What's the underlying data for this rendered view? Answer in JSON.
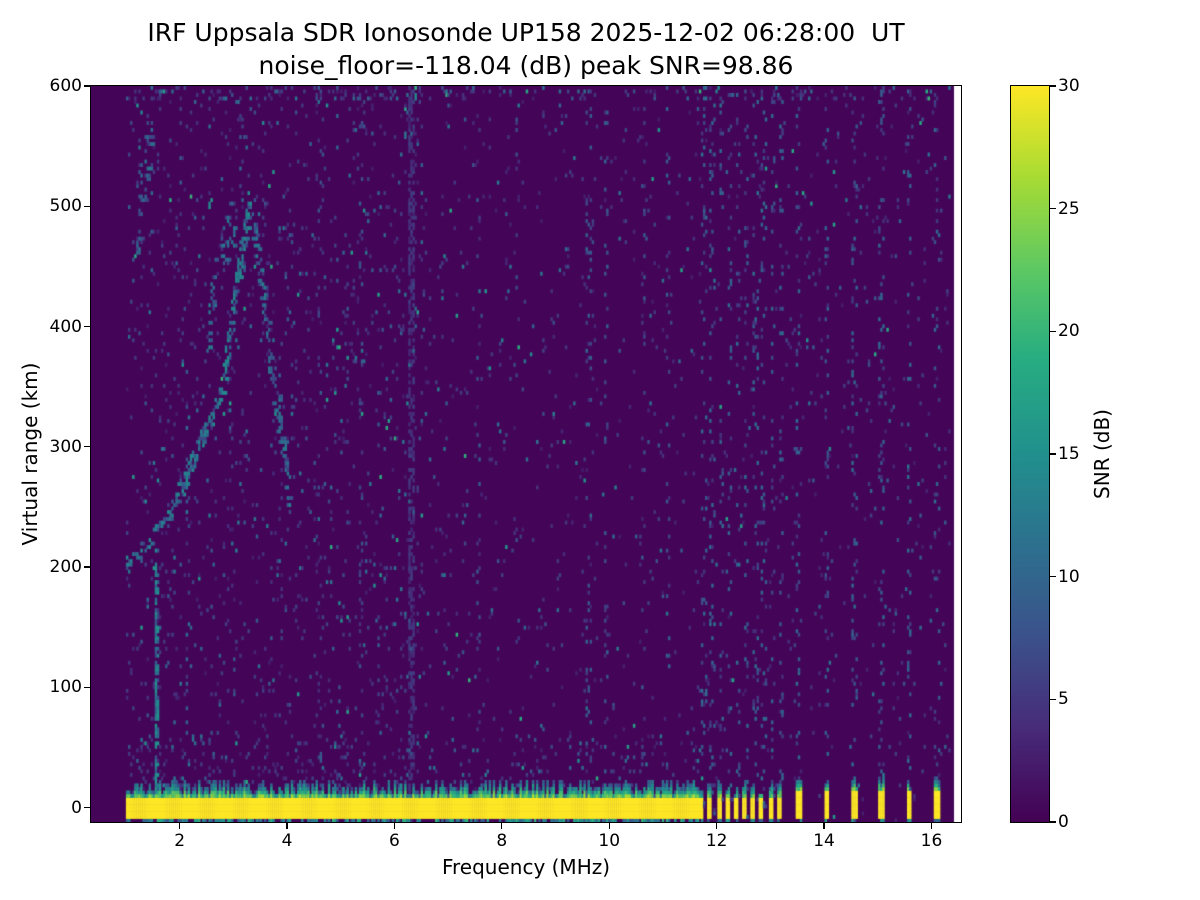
{
  "chart_data": {
    "type": "heatmap",
    "title": "IRF Uppsala SDR Ionosonde UP158 2025-12-02 06:28:00  UT",
    "subtitle": "noise_floor=-118.04 (dB) peak SNR=98.86",
    "xlabel": "Frequency (MHz)",
    "ylabel": "Virtual range (km)",
    "colorbar_label": "SNR (dB)",
    "colormap": "viridis",
    "noise_floor_db": -118.04,
    "peak_snr_db": 98.86,
    "xlim": [
      0.35,
      16.55
    ],
    "ylim": [
      -12,
      600
    ],
    "clim": [
      0,
      30
    ],
    "xticks": [
      2,
      4,
      6,
      8,
      10,
      12,
      14,
      16
    ],
    "yticks": [
      0,
      100,
      200,
      300,
      400,
      500,
      600
    ],
    "colorbar_ticks": [
      0,
      5,
      10,
      15,
      20,
      25,
      30
    ],
    "freq_range_mhz": [
      1.0,
      16.35
    ],
    "image_extent": [
      0.35,
      16.42
    ],
    "seed": 7,
    "features": {
      "speckle": {
        "split_mhz": 6.6,
        "density_low": 0.045,
        "density_high": 0.02,
        "top_fringe_km": 588,
        "top_fringe_density": 0.1,
        "low_range_km": 60,
        "low_range_density": 0.05
      },
      "ground_return": {
        "f_start": 1.0,
        "f_end": 11.68,
        "r_lo": -8,
        "r_hi": 8,
        "value": 30,
        "fringe_max_km": 14,
        "below_fringe_density": 0.7,
        "broken": {
          "f_start": 11.68,
          "f_end": 13.28,
          "spacing": 0.16,
          "duty": 0.45
        },
        "blobs": [
          13.52,
          14.04,
          14.56,
          15.06,
          15.58,
          16.1
        ],
        "blob_w": 0.1,
        "blob_r_hi": 12
      },
      "echo_trace": [
        {
          "from": [
            1.0,
            200
          ],
          "to": [
            1.75,
            238
          ],
          "density": 0.45,
          "jitter": 7,
          "v": [
            6,
            14
          ]
        },
        {
          "from": [
            1.75,
            238
          ],
          "to": [
            2.8,
            345
          ],
          "density": 0.6,
          "jitter": 8,
          "v": [
            6,
            15
          ]
        },
        {
          "from": [
            2.8,
            350
          ],
          "to": [
            3.3,
            505
          ],
          "density": 0.55,
          "jitter": 15,
          "v": [
            6,
            15
          ]
        },
        {
          "from": [
            2.5,
            400
          ],
          "to": [
            3.2,
            530
          ],
          "density": 0.3,
          "jitter": 28,
          "v": [
            5,
            13
          ]
        },
        {
          "from": [
            3.35,
            495
          ],
          "to": [
            4.05,
            255
          ],
          "density": 0.35,
          "jitter": 20,
          "v": [
            5,
            13
          ]
        },
        {
          "from": [
            1.1,
            430
          ],
          "to": [
            1.5,
            585
          ],
          "density": 0.22,
          "jitter": 30,
          "v": [
            5,
            12
          ]
        },
        {
          "from": [
            1.55,
            10
          ],
          "to": [
            1.57,
            210
          ],
          "density": 0.5,
          "jitter": 5,
          "v": [
            6,
            16
          ]
        }
      ],
      "vertical_stripes": [
        {
          "f": 2.15,
          "w": 0.05,
          "density": 0.12,
          "v": [
            4,
            12
          ],
          "r": [
            -8,
            360
          ]
        },
        {
          "f": 4.62,
          "w": 0.05,
          "density": 0.07,
          "v": [
            3,
            9
          ]
        },
        {
          "f": 5.38,
          "w": 0.05,
          "density": 0.1,
          "v": [
            3,
            8
          ]
        },
        {
          "f": 6.32,
          "w": 0.06,
          "density": 0.5,
          "v": [
            3,
            6
          ]
        },
        {
          "f": 7.55,
          "w": 0.05,
          "density": 0.06,
          "v": [
            3,
            9
          ]
        },
        {
          "f": 8.3,
          "w": 0.04,
          "density": 0.05,
          "v": [
            3,
            8
          ]
        },
        {
          "f": 9.62,
          "w": 0.06,
          "density": 0.1,
          "v": [
            4,
            10
          ]
        },
        {
          "f": 9.95,
          "w": 0.05,
          "density": 0.09,
          "v": [
            4,
            10
          ]
        },
        {
          "f": 10.62,
          "w": 0.04,
          "density": 0.06,
          "v": [
            3,
            9
          ]
        },
        {
          "f": 11.08,
          "w": 0.05,
          "density": 0.08,
          "v": [
            4,
            10
          ]
        }
      ]
    }
  }
}
